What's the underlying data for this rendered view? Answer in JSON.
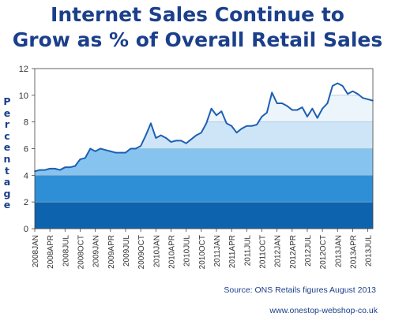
{
  "title_line1": "Internet Sales Continue to",
  "title_line2": "Grow as % of Overall Retail Sales",
  "source_text": "Source: ONS Retails figures August 2013",
  "website_text": "www.onestop-webshop-co.uk",
  "colors": {
    "title": "#1b3f8a",
    "band_0_2": "#0d63ad",
    "band_2_4": "#2f8fd6",
    "band_4_6": "#86c3ee",
    "band_6_8": "#cde5f7",
    "band_8_10": "#ecf5fc",
    "band_10_12": "#ffffff",
    "line": "#1e5fb3"
  },
  "chart_data": {
    "type": "line",
    "title": "Internet Sales Continue to Grow as % of Overall Retail Sales",
    "ylabel": "Percentage",
    "xlabel": "",
    "ylim": [
      0,
      12
    ],
    "yticks": [
      0,
      2,
      4,
      6,
      8,
      10,
      12
    ],
    "grid": true,
    "legend": "none",
    "x_tick_labels": [
      "2008JAN",
      "2008APR",
      "2008JUL",
      "2008OCT",
      "2009JAN",
      "2009APR",
      "2009JUL",
      "2009OCT",
      "2010JAN",
      "2010APR",
      "2010JUL",
      "2010OCT",
      "2011JAN",
      "2011APR",
      "2011JUL",
      "2011OCT",
      "2012JAN",
      "2012APR",
      "2012JUL",
      "2012OCT",
      "2013JAN",
      "2013APR",
      "2013JUL"
    ],
    "series": [
      {
        "x": [
          "2008-01",
          "2008-02",
          "2008-03",
          "2008-04",
          "2008-05",
          "2008-06",
          "2008-07",
          "2008-08",
          "2008-09",
          "2008-10",
          "2008-11",
          "2008-12",
          "2009-01",
          "2009-02",
          "2009-03",
          "2009-04",
          "2009-05",
          "2009-06",
          "2009-07",
          "2009-08",
          "2009-09",
          "2009-10",
          "2009-11",
          "2009-12",
          "2010-01",
          "2010-02",
          "2010-03",
          "2010-04",
          "2010-05",
          "2010-06",
          "2010-07",
          "2010-08",
          "2010-09",
          "2010-10",
          "2010-11",
          "2010-12",
          "2011-01",
          "2011-02",
          "2011-03",
          "2011-04",
          "2011-05",
          "2011-06",
          "2011-07",
          "2011-08",
          "2011-09",
          "2011-10",
          "2011-11",
          "2011-12",
          "2012-01",
          "2012-02",
          "2012-03",
          "2012-04",
          "2012-05",
          "2012-06",
          "2012-07",
          "2012-08",
          "2012-09",
          "2012-10",
          "2012-11",
          "2012-12",
          "2013-01",
          "2013-02",
          "2013-03",
          "2013-04",
          "2013-05",
          "2013-06",
          "2013-07",
          "2013-08"
        ],
        "values": [
          4.3,
          4.4,
          4.4,
          4.5,
          4.5,
          4.4,
          4.6,
          4.6,
          4.7,
          5.2,
          5.3,
          6.0,
          5.8,
          6.0,
          5.9,
          5.8,
          5.7,
          5.7,
          5.7,
          6.0,
          6.0,
          6.2,
          7.0,
          7.9,
          6.8,
          7.0,
          6.8,
          6.5,
          6.6,
          6.6,
          6.4,
          6.7,
          7.0,
          7.2,
          7.9,
          9.0,
          8.5,
          8.8,
          7.9,
          7.7,
          7.2,
          7.5,
          7.7,
          7.7,
          7.8,
          8.4,
          8.7,
          10.2,
          9.4,
          9.4,
          9.2,
          8.9,
          8.9,
          9.1,
          8.4,
          9.0,
          8.3,
          9.0,
          9.4,
          10.7,
          10.9,
          10.7,
          10.1,
          10.3,
          10.1,
          9.8,
          9.7,
          9.6
        ]
      }
    ]
  }
}
